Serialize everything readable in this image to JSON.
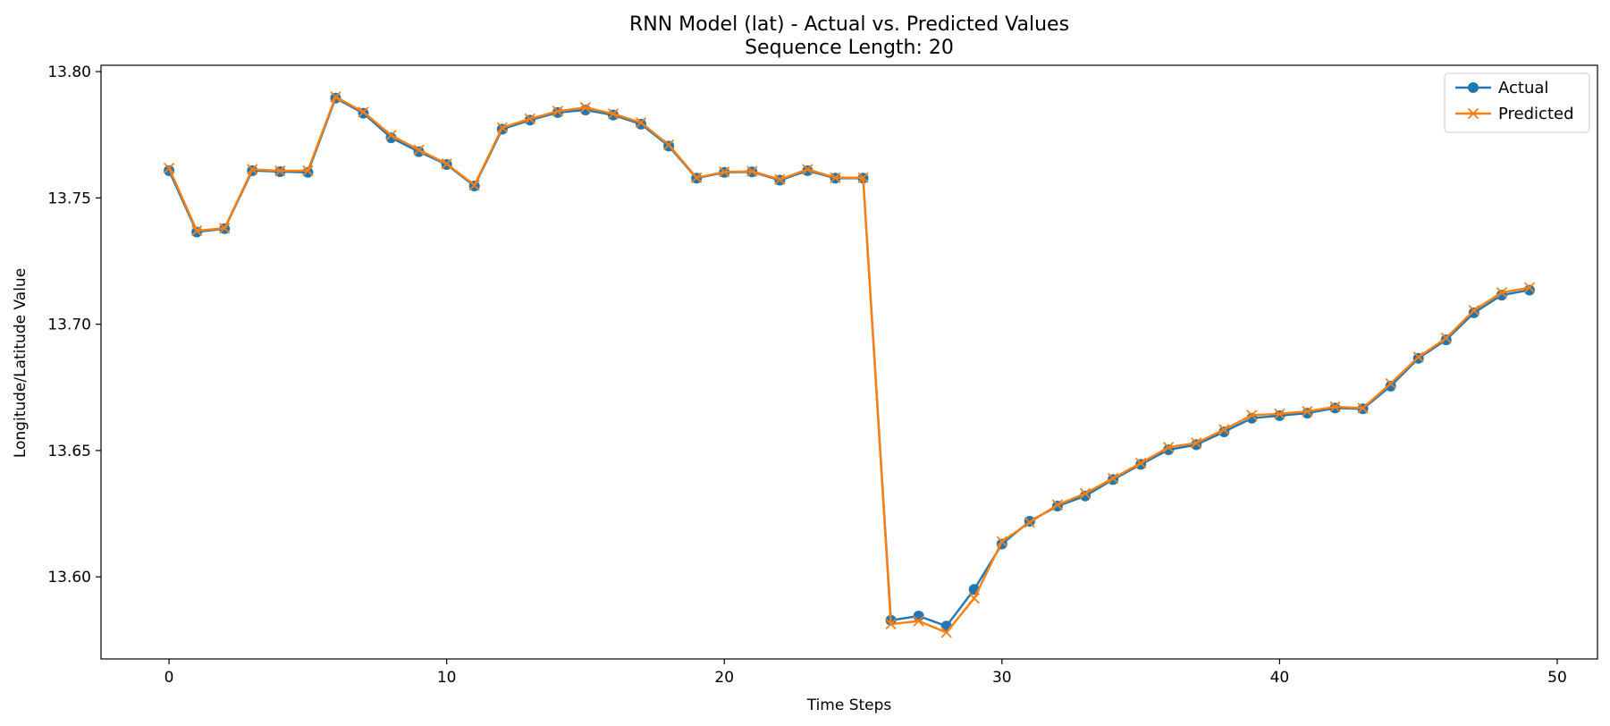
{
  "chart_data": {
    "type": "line",
    "title": "RNN Model (lat) - Actual vs. Predicted Values",
    "subtitle": "Sequence Length: 20",
    "xlabel": "Time Steps",
    "ylabel": "Longitude/Latitude Value",
    "xlim": [
      -2.45,
      51.45
    ],
    "ylim": [
      13.5675,
      13.8025
    ],
    "x_ticks": [
      0,
      10,
      20,
      30,
      40,
      50
    ],
    "y_ticks": [
      13.6,
      13.65,
      13.7,
      13.75,
      13.8
    ],
    "y_tick_labels": [
      "13.60",
      "13.65",
      "13.70",
      "13.75",
      "13.80"
    ],
    "grid": false,
    "legend_position": "top-right",
    "x": [
      0,
      1,
      2,
      3,
      4,
      5,
      6,
      7,
      8,
      9,
      10,
      11,
      12,
      13,
      14,
      15,
      16,
      17,
      18,
      19,
      20,
      21,
      22,
      23,
      24,
      25,
      26,
      27,
      28,
      29,
      30,
      31,
      32,
      33,
      34,
      35,
      36,
      37,
      38,
      39,
      40,
      41,
      42,
      43,
      44,
      45,
      46,
      47,
      48,
      49
    ],
    "series": [
      {
        "name": "Actual",
        "color": "#1f77b4",
        "marker": "circle",
        "values": [
          13.7608,
          13.7365,
          13.7378,
          13.7608,
          13.7604,
          13.7601,
          13.7895,
          13.7835,
          13.7738,
          13.7683,
          13.7632,
          13.7547,
          13.7772,
          13.7808,
          13.7838,
          13.7848,
          13.7828,
          13.7792,
          13.7705,
          13.7578,
          13.7601,
          13.7603,
          13.757,
          13.7608,
          13.7578,
          13.7578,
          13.5828,
          13.5845,
          13.5805,
          13.595,
          13.613,
          13.622,
          13.628,
          13.632,
          13.6385,
          13.6445,
          13.6503,
          13.6523,
          13.6574,
          13.6628,
          13.6638,
          13.6648,
          13.6668,
          13.6665,
          13.6755,
          13.6865,
          13.6938,
          13.7045,
          13.7115,
          13.7135
        ]
      },
      {
        "name": "Predicted",
        "color": "#ff7f0e",
        "marker": "x",
        "values": [
          13.7618,
          13.737,
          13.738,
          13.7613,
          13.7607,
          13.7608,
          13.79,
          13.784,
          13.7748,
          13.769,
          13.7635,
          13.755,
          13.7778,
          13.7813,
          13.7843,
          13.7858,
          13.7833,
          13.7798,
          13.771,
          13.758,
          13.7603,
          13.7605,
          13.7573,
          13.7613,
          13.758,
          13.758,
          13.5813,
          13.5825,
          13.578,
          13.5915,
          13.614,
          13.6215,
          13.6285,
          13.633,
          13.639,
          13.645,
          13.6513,
          13.653,
          13.6583,
          13.664,
          13.6645,
          13.6655,
          13.6673,
          13.6668,
          13.6765,
          13.687,
          13.6945,
          13.7055,
          13.7125,
          13.7145
        ]
      }
    ]
  }
}
